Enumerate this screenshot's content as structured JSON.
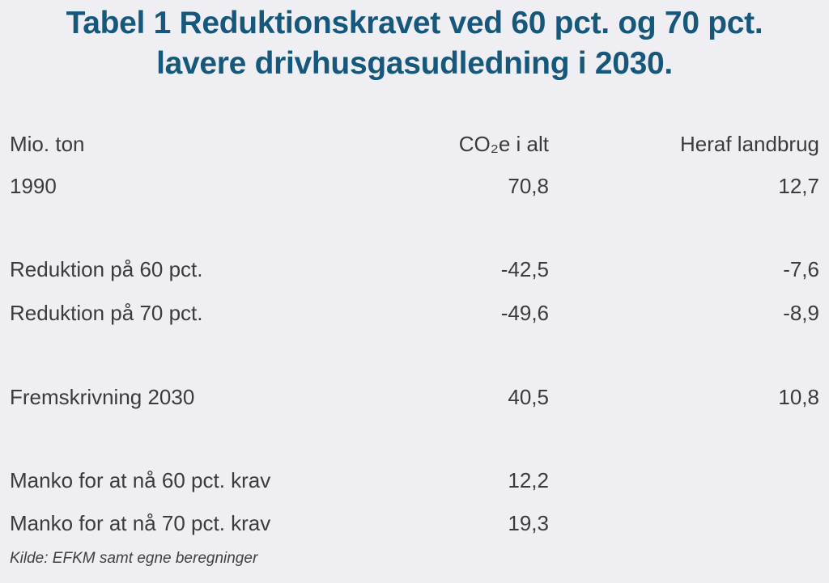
{
  "page": {
    "background_color": "#EFEFF3",
    "title_color": "#15587C",
    "text_color": "#3B3B3B"
  },
  "title": {
    "line1": "Tabel 1 Reduktionskravet ved 60 pct. og 70 pct.",
    "line2": "lavere drivhusgasudledning i 2030."
  },
  "table": {
    "header": {
      "unit": "Mio. ton",
      "co2_total": "CO₂e i alt",
      "agriculture": "Heraf landbrug"
    },
    "rows": [
      {
        "label": "1990",
        "co2_total": "70,8",
        "agriculture": "12,7"
      },
      {
        "label": "Reduktion på 60 pct.",
        "co2_total": "-42,5",
        "agriculture": "-7,6"
      },
      {
        "label": "Reduktion på 70 pct.",
        "co2_total": "-49,6",
        "agriculture": "-8,9"
      },
      {
        "label": "Fremskrivning 2030",
        "co2_total": "40,5",
        "agriculture": "10,8"
      },
      {
        "label": "Manko for at nå 60 pct. krav",
        "co2_total": "12,2",
        "agriculture": ""
      },
      {
        "label": "Manko for at nå 70 pct. krav",
        "co2_total": "19,3",
        "agriculture": ""
      }
    ],
    "source": "Kilde: EFKM samt egne beregninger"
  },
  "chart_data": {
    "type": "table",
    "title": "Tabel 1 Reduktionskravet ved 60 pct. og 70 pct. lavere drivhusgasudledning i 2030.",
    "unit": "Mio. ton",
    "columns": [
      "Mio. ton",
      "CO₂e i alt",
      "Heraf landbrug"
    ],
    "rows": [
      [
        "1990",
        70.8,
        12.7
      ],
      [
        "Reduktion på 60 pct.",
        -42.5,
        -7.6
      ],
      [
        "Reduktion på 70 pct.",
        -49.6,
        -8.9
      ],
      [
        "Fremskrivning 2030",
        40.5,
        10.8
      ],
      [
        "Manko for at nå 60 pct. krav",
        12.2,
        null
      ],
      [
        "Manko for at nå 70 pct. krav",
        19.3,
        null
      ]
    ],
    "source": "Kilde: EFKM samt egne beregninger"
  }
}
